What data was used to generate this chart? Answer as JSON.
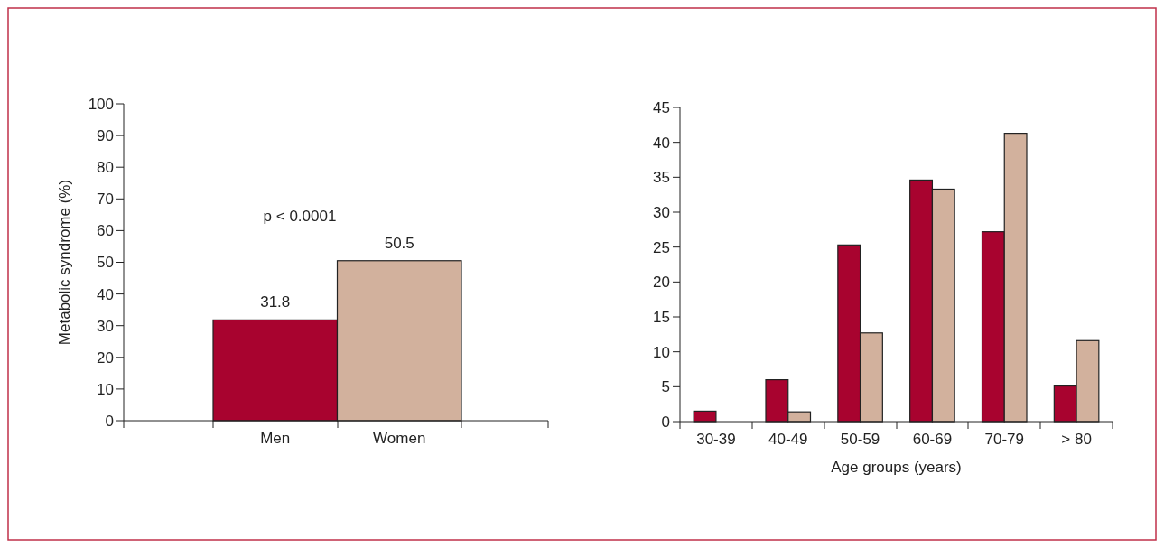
{
  "chart_data": [
    {
      "type": "bar",
      "categories": [
        "Men",
        "Women"
      ],
      "values": [
        31.8,
        50.5
      ],
      "colors": [
        "#a8032f",
        "#d2b19d"
      ],
      "ylabel": "Metabolic syndrome (%)",
      "ylim": [
        0,
        100
      ],
      "yticks": [
        0,
        10,
        20,
        30,
        40,
        50,
        60,
        70,
        80,
        90,
        100
      ],
      "data_labels": true,
      "annotations": [
        "p < 0.0001"
      ]
    },
    {
      "type": "bar",
      "categories": [
        "30-39",
        "40-49",
        "50-59",
        "60-69",
        "70-79",
        "> 80"
      ],
      "xlabel": "Age groups (years)",
      "ylim": [
        0,
        45
      ],
      "yticks": [
        0,
        5,
        10,
        15,
        20,
        25,
        30,
        35,
        40,
        45
      ],
      "series": [
        {
          "color": "#a8032f",
          "values": [
            1.5,
            6.0,
            25.3,
            34.6,
            27.2,
            5.1
          ]
        },
        {
          "color": "#d2b19d",
          "values": [
            null,
            1.4,
            12.7,
            33.3,
            41.3,
            11.6
          ]
        }
      ]
    }
  ]
}
